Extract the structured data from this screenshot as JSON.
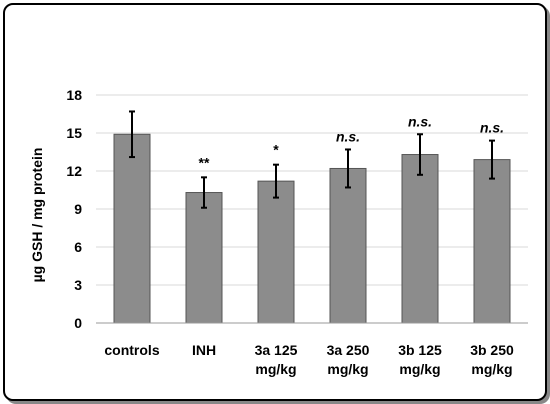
{
  "chart_data": {
    "type": "bar",
    "title": "",
    "xlabel": "",
    "ylabel": "µg GSH / mg protein",
    "ylim": [
      0,
      18
    ],
    "yticks": [
      0,
      3,
      6,
      9,
      12,
      15,
      18
    ],
    "grid": true,
    "categories": [
      [
        "controls"
      ],
      [
        "INH"
      ],
      [
        "3a 125",
        "mg/kg"
      ],
      [
        "3a 250",
        "mg/kg"
      ],
      [
        "3b 125",
        "mg/kg"
      ],
      [
        "3b 250",
        "mg/kg"
      ]
    ],
    "values": [
      14.9,
      10.3,
      11.2,
      12.2,
      13.3,
      12.9
    ],
    "errors": [
      1.8,
      1.2,
      1.3,
      1.5,
      1.6,
      1.5
    ],
    "annotations": [
      "",
      "**",
      "*",
      "n.s.",
      "n.s.",
      "n.s."
    ],
    "colors": {
      "bar_fill": "#8c8c8c",
      "bar_stroke": "#555555",
      "grid": "#d9d9d9",
      "axis": "#999999"
    }
  }
}
